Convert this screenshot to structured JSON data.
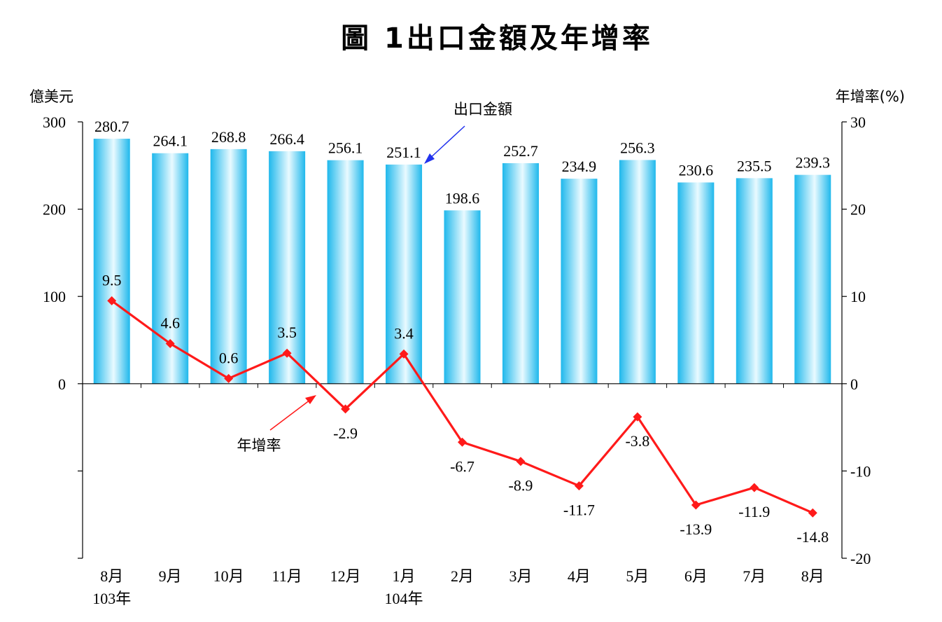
{
  "chart_data": {
    "type": "bar",
    "title": "圖 1出口金額及年增率",
    "left_axis_label": "億美元",
    "right_axis_label": "年增率(%)",
    "categories": [
      "8月",
      "9月",
      "10月",
      "11月",
      "12月",
      "1月",
      "2月",
      "3月",
      "4月",
      "5月",
      "6月",
      "7月",
      "8月"
    ],
    "year_labels": [
      {
        "index": 0,
        "text": "103年"
      },
      {
        "index": 5,
        "text": "104年"
      }
    ],
    "left_ticks": [
      "300",
      "200",
      "100",
      "0"
    ],
    "right_ticks": [
      "30",
      "20",
      "10",
      "0",
      "-10",
      "-20"
    ],
    "left_ylim": [
      -200,
      300
    ],
    "right_ylim": [
      -20,
      30
    ],
    "grid": false,
    "series": [
      {
        "name": "出口金額",
        "type": "bar",
        "axis": "left",
        "color": "#33C6F0",
        "values": [
          280.7,
          264.1,
          268.8,
          266.4,
          256.1,
          251.1,
          198.6,
          252.7,
          234.9,
          256.3,
          230.6,
          235.5,
          239.3
        ],
        "labels": [
          "280.7",
          "264.1",
          "268.8",
          "266.4",
          "256.1",
          "251.1",
          "198.6",
          "252.7",
          "234.9",
          "256.3",
          "230.6",
          "235.5",
          "239.3"
        ]
      },
      {
        "name": "年增率",
        "type": "line",
        "axis": "right",
        "color": "#FF1A1A",
        "values": [
          9.5,
          4.6,
          0.6,
          3.5,
          -2.9,
          3.4,
          -6.7,
          -8.9,
          -11.7,
          -3.8,
          -13.9,
          -11.9,
          -14.8
        ],
        "labels": [
          "9.5",
          "4.6",
          "0.6",
          "3.5",
          "-2.9",
          "3.4",
          "-6.7",
          "-8.9",
          "-11.7",
          "-3.8",
          "-13.9",
          "-11.9",
          "-14.8"
        ]
      }
    ]
  }
}
